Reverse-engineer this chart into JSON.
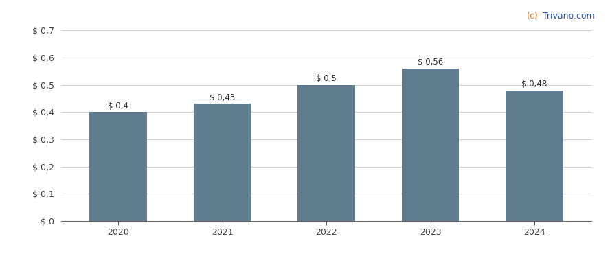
{
  "years": [
    "2020",
    "2021",
    "2022",
    "2023",
    "2024"
  ],
  "values": [
    0.4,
    0.43,
    0.5,
    0.56,
    0.48
  ],
  "bar_color": "#5f7d8e",
  "bar_labels": [
    "$ 0,4",
    "$ 0,43",
    "$ 0,5",
    "$ 0,56",
    "$ 0,48"
  ],
  "ylim": [
    0,
    0.7
  ],
  "yticks": [
    0,
    0.1,
    0.2,
    0.3,
    0.4,
    0.5,
    0.6,
    0.7
  ],
  "ytick_labels": [
    "$ 0",
    "$ 0,1",
    "$ 0,2",
    "$ 0,3",
    "$ 0,4",
    "$ 0,5",
    "$ 0,6",
    "$ 0,7"
  ],
  "grid_color": "#cccccc",
  "background_color": "#ffffff",
  "watermark_c_text": "(c)",
  "watermark_rest_text": " Trivano.com",
  "watermark_color_c": "#e07820",
  "watermark_color_rest": "#2255bb",
  "bar_label_fontsize": 8.5,
  "tick_fontsize": 9,
  "watermark_fontsize": 9,
  "bar_width": 0.55
}
